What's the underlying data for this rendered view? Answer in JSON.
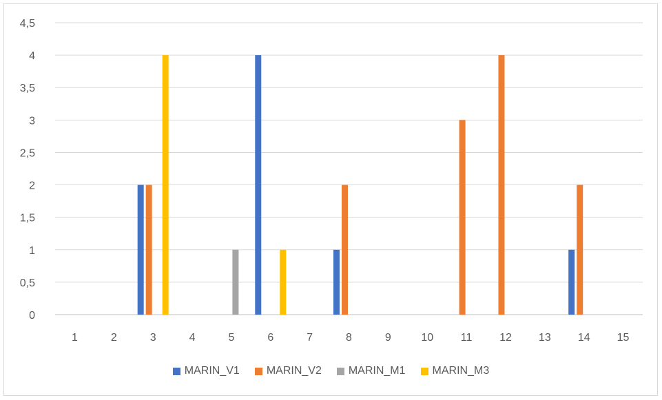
{
  "chart_data": {
    "type": "bar",
    "categories": [
      "1",
      "2",
      "3",
      "4",
      "5",
      "6",
      "7",
      "8",
      "9",
      "10",
      "11",
      "12",
      "13",
      "14",
      "15"
    ],
    "series": [
      {
        "name": "MARIN_V1",
        "color": "#4472c4",
        "values": [
          0,
          0,
          2,
          0,
          0,
          4,
          0,
          1,
          0,
          0,
          0,
          0,
          0,
          1,
          0
        ]
      },
      {
        "name": "MARIN_V2",
        "color": "#ed7d31",
        "values": [
          0,
          0,
          2,
          0,
          0,
          0,
          0,
          2,
          0,
          0,
          3,
          4,
          0,
          2,
          0
        ]
      },
      {
        "name": "MARIN_M1",
        "color": "#a5a5a5",
        "values": [
          0,
          0,
          0,
          0,
          1,
          0,
          0,
          0,
          0,
          0,
          0,
          0,
          0,
          0,
          0
        ]
      },
      {
        "name": "MARIN_M3",
        "color": "#ffc000",
        "values": [
          0,
          0,
          4,
          0,
          0,
          1,
          0,
          0,
          0,
          0,
          0,
          0,
          0,
          0,
          0
        ]
      }
    ],
    "ylim": [
      0,
      4.5
    ],
    "y_ticks": [
      "0",
      "0,5",
      "1",
      "1,5",
      "2",
      "2,5",
      "3",
      "3,5",
      "4",
      "4,5"
    ],
    "y_tick_values": [
      0,
      0.5,
      1,
      1.5,
      2,
      2.5,
      3,
      3.5,
      4,
      4.5
    ],
    "grid": true,
    "legend_position": "bottom"
  }
}
